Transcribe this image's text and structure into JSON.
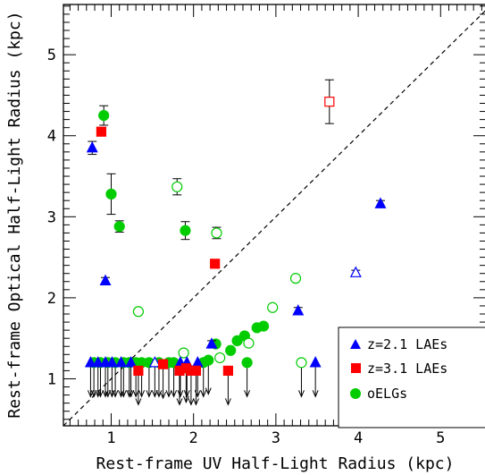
{
  "chart_data": {
    "type": "scatter",
    "xlabel": "Rest-frame UV Half-Light Radius (kpc)",
    "ylabel": "Rest-frame Optical Half-Light Radius (kpc)",
    "xlim": [
      0.42,
      5.55
    ],
    "ylim": [
      0.42,
      5.62
    ],
    "x_ticks": [
      1,
      2,
      3,
      4,
      5
    ],
    "y_ticks": [
      1,
      2,
      3,
      4,
      5
    ],
    "one_to_one_line": true,
    "legend_position": "bottom-right",
    "colors": {
      "lae21": "#0000ff",
      "lae31": "#ff0000",
      "oelg": "#00cc00",
      "ink": "#000000"
    },
    "series": [
      {
        "name": "z=2.1 LAEs",
        "marker": "triangle",
        "points": [
          {
            "x": 0.77,
            "y": 3.85,
            "err": 0.08,
            "filled": true
          },
          {
            "x": 0.93,
            "y": 2.21,
            "err": 0.04,
            "filled": true
          },
          {
            "x": 2.22,
            "y": 1.43,
            "err": 0.04,
            "filled": true
          },
          {
            "x": 3.27,
            "y": 1.84,
            "err": 0.04,
            "filled": true
          },
          {
            "x": 3.97,
            "y": 2.31,
            "err": 0.03,
            "filled": false
          },
          {
            "x": 4.27,
            "y": 3.16,
            "err": 0.04,
            "filled": true
          },
          {
            "x": 0.75,
            "y": 1.2,
            "upper": true,
            "filled": true
          },
          {
            "x": 0.84,
            "y": 1.2,
            "upper": true,
            "filled": true
          },
          {
            "x": 0.93,
            "y": 1.2,
            "upper": true,
            "filled": true
          },
          {
            "x": 1.01,
            "y": 1.2,
            "upper": true,
            "filled": true
          },
          {
            "x": 1.12,
            "y": 1.2,
            "upper": true,
            "filled": true
          },
          {
            "x": 1.24,
            "y": 1.2,
            "upper": true,
            "filled": true
          },
          {
            "x": 1.53,
            "y": 1.2,
            "upper": true,
            "filled": false
          },
          {
            "x": 1.84,
            "y": 1.2,
            "upper": true,
            "filled": true
          },
          {
            "x": 1.92,
            "y": 1.2,
            "upper": true,
            "filled": true
          },
          {
            "x": 2.05,
            "y": 1.2,
            "upper": true,
            "filled": true
          },
          {
            "x": 3.48,
            "y": 1.2,
            "upper": true,
            "filled": true
          }
        ]
      },
      {
        "name": "z=3.1 LAEs",
        "marker": "square",
        "points": [
          {
            "x": 0.88,
            "y": 4.05,
            "err": 0.05,
            "filled": true
          },
          {
            "x": 2.26,
            "y": 2.42,
            "err": 0.03,
            "filled": true
          },
          {
            "x": 3.65,
            "y": 4.42,
            "err": 0.27,
            "filled": false
          },
          {
            "x": 1.33,
            "y": 1.1,
            "upper": true,
            "filled": true
          },
          {
            "x": 1.63,
            "y": 1.18,
            "upper": true,
            "filled": true
          },
          {
            "x": 1.83,
            "y": 1.1,
            "upper": true,
            "filled": true
          },
          {
            "x": 1.91,
            "y": 1.13,
            "upper": true,
            "filled": true
          },
          {
            "x": 1.97,
            "y": 1.1,
            "upper": true,
            "filled": true
          },
          {
            "x": 2.03,
            "y": 1.1,
            "upper": true,
            "filled": true
          },
          {
            "x": 2.42,
            "y": 1.1,
            "upper": true,
            "filled": true
          }
        ]
      },
      {
        "name": "oELGs",
        "marker": "circle",
        "points": [
          {
            "x": 0.91,
            "y": 4.25,
            "err": 0.12,
            "filled": true
          },
          {
            "x": 1.0,
            "y": 3.28,
            "err": 0.25,
            "filled": true
          },
          {
            "x": 1.1,
            "y": 2.88,
            "err": 0.07,
            "filled": true
          },
          {
            "x": 1.33,
            "y": 1.83,
            "err": 0.03,
            "filled": false
          },
          {
            "x": 1.8,
            "y": 3.37,
            "err": 0.1,
            "filled": false
          },
          {
            "x": 1.9,
            "y": 2.83,
            "err": 0.11,
            "filled": true
          },
          {
            "x": 2.28,
            "y": 2.8,
            "err": 0.07,
            "filled": false
          },
          {
            "x": 1.88,
            "y": 1.32,
            "err": 0.03,
            "filled": false
          },
          {
            "x": 2.27,
            "y": 1.43,
            "err": 0.02,
            "filled": true
          },
          {
            "x": 2.32,
            "y": 1.26,
            "err": 0.03,
            "filled": false
          },
          {
            "x": 2.45,
            "y": 1.35,
            "err": 0.03,
            "filled": true
          },
          {
            "x": 2.53,
            "y": 1.47,
            "err": 0.03,
            "filled": true
          },
          {
            "x": 2.62,
            "y": 1.53,
            "err": 0.03,
            "filled": true
          },
          {
            "x": 2.67,
            "y": 1.44,
            "err": 0.03,
            "filled": false
          },
          {
            "x": 2.77,
            "y": 1.63,
            "err": 0.03,
            "filled": true
          },
          {
            "x": 2.85,
            "y": 1.65,
            "err": 0.02,
            "filled": true
          },
          {
            "x": 2.96,
            "y": 1.88,
            "err": 0.03,
            "filled": false
          },
          {
            "x": 3.24,
            "y": 2.24,
            "err": 0.03,
            "filled": false
          },
          {
            "x": 0.79,
            "y": 1.2,
            "upper": true,
            "filled": true
          },
          {
            "x": 0.87,
            "y": 1.2,
            "upper": true,
            "filled": true
          },
          {
            "x": 0.96,
            "y": 1.2,
            "upper": true,
            "filled": true
          },
          {
            "x": 1.05,
            "y": 1.2,
            "upper": true,
            "filled": true
          },
          {
            "x": 1.15,
            "y": 1.2,
            "upper": true,
            "filled": true
          },
          {
            "x": 1.22,
            "y": 1.2,
            "upper": true,
            "filled": true
          },
          {
            "x": 1.3,
            "y": 1.2,
            "upper": true,
            "filled": true
          },
          {
            "x": 1.37,
            "y": 1.2,
            "upper": true,
            "filled": true
          },
          {
            "x": 1.46,
            "y": 1.2,
            "upper": true,
            "filled": true
          },
          {
            "x": 1.58,
            "y": 1.2,
            "upper": true,
            "filled": true
          },
          {
            "x": 1.7,
            "y": 1.2,
            "upper": true,
            "filled": true
          },
          {
            "x": 1.76,
            "y": 1.2,
            "upper": true,
            "filled": true
          },
          {
            "x": 2.12,
            "y": 1.2,
            "upper": true,
            "filled": true
          },
          {
            "x": 2.18,
            "y": 1.23,
            "upper": true,
            "filled": true
          },
          {
            "x": 2.65,
            "y": 1.2,
            "upper": true,
            "filled": true
          },
          {
            "x": 3.31,
            "y": 1.2,
            "upper": true,
            "filled": false
          }
        ]
      }
    ]
  }
}
